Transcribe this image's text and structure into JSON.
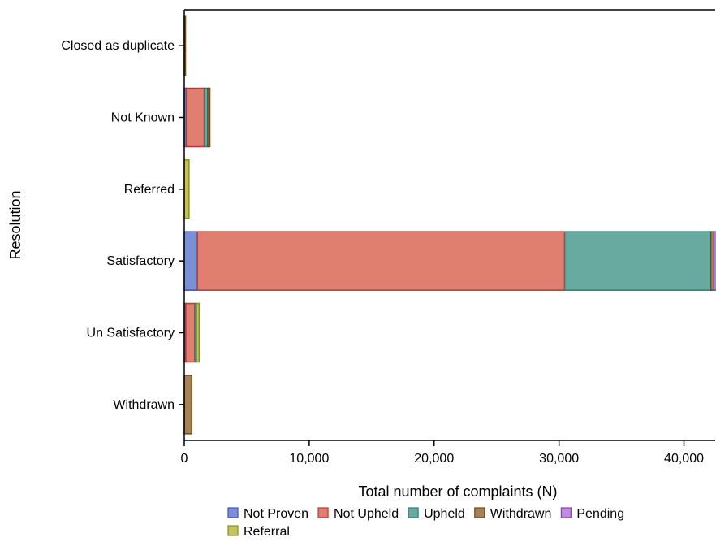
{
  "chart_data": {
    "type": "bar",
    "orientation": "horizontal",
    "stacked": true,
    "categories": [
      "Closed as duplicate",
      "Not Known",
      "Referred",
      "Satisfactory",
      "Un Satisfactory",
      "Withdrawn"
    ],
    "series": [
      {
        "name": "Not Proven",
        "color": "#7b8fd6",
        "stroke": "#3d55b8",
        "values": [
          0,
          150,
          0,
          1050,
          120,
          0
        ]
      },
      {
        "name": "Not Upheld",
        "color": "#e07f70",
        "stroke": "#b23a35",
        "values": [
          0,
          1450,
          0,
          29400,
          720,
          0
        ]
      },
      {
        "name": "Upheld",
        "color": "#68a9a0",
        "stroke": "#2a7f73",
        "values": [
          0,
          280,
          0,
          11700,
          150,
          0
        ]
      },
      {
        "name": "Withdrawn",
        "color": "#a88155",
        "stroke": "#6b4a22",
        "values": [
          100,
          170,
          0,
          250,
          0,
          600
        ]
      },
      {
        "name": "Pending",
        "color": "#c08ae0",
        "stroke": "#8a3fb5",
        "values": [
          0,
          0,
          0,
          200,
          0,
          0
        ]
      },
      {
        "name": "Referral",
        "color": "#c2c25e",
        "stroke": "#8d8d22",
        "values": [
          0,
          0,
          380,
          0,
          200,
          0
        ]
      }
    ],
    "xlabel": "Total number of complaints (N)",
    "ylabel": "Resolution",
    "xlim": [
      0,
      42500
    ],
    "xticks": [
      0,
      10000,
      20000,
      30000,
      40000
    ],
    "xtick_labels": [
      "0",
      "10,000",
      "20,000",
      "30,000",
      "40,000"
    ],
    "grid": false,
    "legend_position": "bottom"
  }
}
